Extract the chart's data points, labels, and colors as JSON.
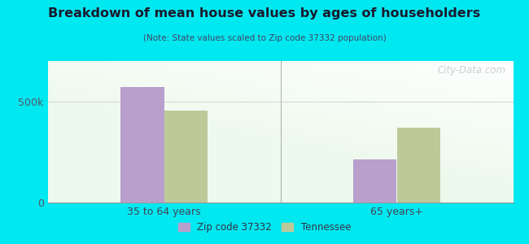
{
  "title": "Breakdown of mean house values by ages of householders",
  "subtitle": "(Note: State values scaled to Zip code 37332 population)",
  "categories": [
    "35 to 64 years",
    "65 years+"
  ],
  "zip_values": [
    570000,
    215000
  ],
  "state_values": [
    455000,
    370000
  ],
  "zip_color": "#b89fcc",
  "state_color": "#bec99a",
  "ylim": [
    0,
    700000
  ],
  "ytick_labels": [
    "0",
    "500k"
  ],
  "ytick_values": [
    0,
    500000
  ],
  "legend_zip": "Zip code 37332",
  "legend_state": "Tennessee",
  "bg_outer": "#00e8f0",
  "watermark": "City-Data.com",
  "bar_width": 0.28,
  "group_positions": [
    0.75,
    2.25
  ]
}
